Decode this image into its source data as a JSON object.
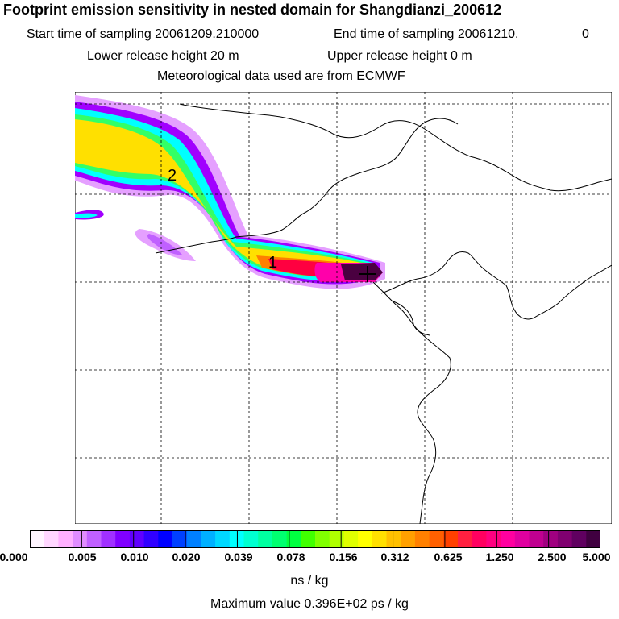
{
  "header": {
    "title": "Footprint emission sensitivity in nested domain for Shangdianzi_200612",
    "start_label": "Start time of sampling 20061209.210000",
    "end_label": "End time of sampling 20061210.",
    "end_suffix": "0",
    "lower_release": "Lower release height   20 m",
    "upper_release": "Upper release height    0 m",
    "met_data": "Meteorological data used are from ECMWF"
  },
  "map": {
    "labels": [
      "2",
      "1"
    ],
    "colors": {
      "coast": "#000000",
      "grid": "#000000",
      "plume_edge": "#e5a0ff",
      "plume_violet": "#a100ff",
      "plume_cyan": "#00ffff",
      "plume_green": "#33ff66",
      "plume_yellow": "#ffe000",
      "plume_orange": "#ff7f00",
      "plume_red": "#ff0040",
      "plume_magenta": "#ff00aa",
      "plume_dark": "#4a0040"
    }
  },
  "colorbar": {
    "ticks": [
      "0.000",
      "0.005",
      "0.010",
      "0.020",
      "0.039",
      "0.078",
      "0.156",
      "0.312",
      "0.625",
      "1.250",
      "2.500",
      "5.000"
    ],
    "colors": [
      "#fff5ff",
      "#ffd6ff",
      "#ffb0ff",
      "#e08cff",
      "#c060ff",
      "#a030ff",
      "#8000ff",
      "#6000ff",
      "#3000ff",
      "#0000ff",
      "#0040ff",
      "#0080ff",
      "#00b0ff",
      "#00d8ff",
      "#00ffff",
      "#00ffd0",
      "#00ffa0",
      "#00ff70",
      "#00ff40",
      "#40ff00",
      "#80ff00",
      "#b0ff00",
      "#e0ff00",
      "#ffff00",
      "#ffe000",
      "#ffc000",
      "#ffa000",
      "#ff8000",
      "#ff6000",
      "#ff4000",
      "#ff2040",
      "#ff0060",
      "#ff0080",
      "#ff00a0",
      "#e000a0",
      "#c00090",
      "#a00080",
      "#800070",
      "#600060",
      "#400040"
    ],
    "unit": "ns / kg"
  },
  "footer": {
    "max_value": "Maximum value  0.396E+02 ps / kg"
  }
}
